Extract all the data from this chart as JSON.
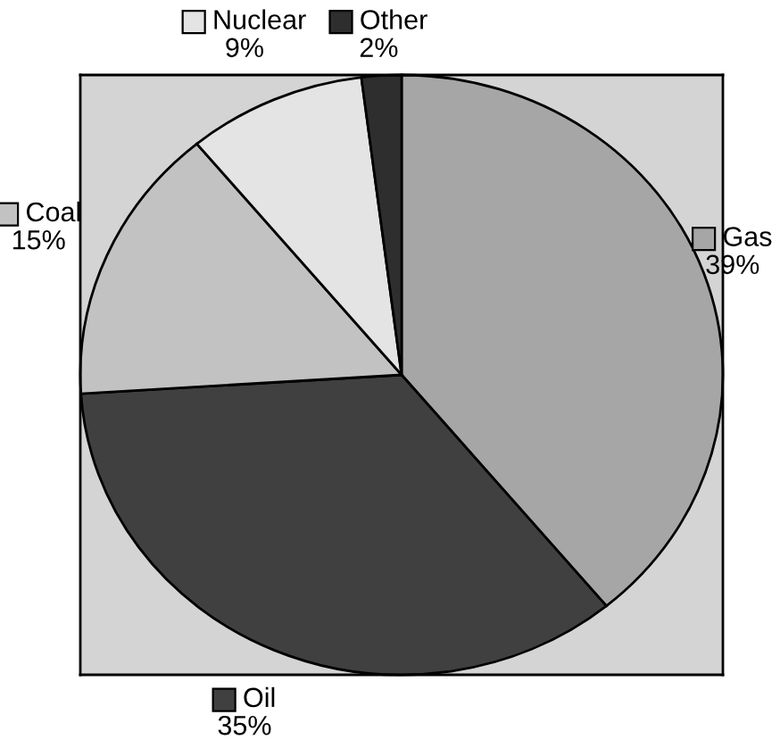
{
  "chart_data": {
    "type": "pie",
    "categories": [
      "Gas",
      "Oil",
      "Coal",
      "Nuclear",
      "Other"
    ],
    "values": [
      39,
      35,
      15,
      9,
      2
    ],
    "colors": [
      "#a6a6a6",
      "#404040",
      "#c2c2c2",
      "#e4e4e4",
      "#2e2e2e"
    ],
    "value_labels": [
      "39%",
      "35%",
      "15%",
      "9%",
      "2%"
    ],
    "legend": "top left"
  }
}
